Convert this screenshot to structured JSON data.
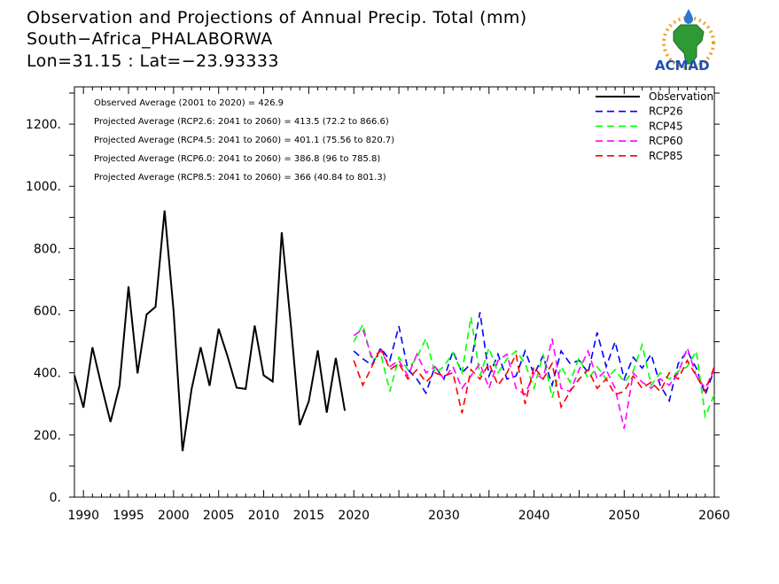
{
  "titles": [
    "Observation and Projections of Annual Precip. Total (mm)",
    "South−Africa_PHALABORWA",
    "Lon=31.15 : Lat=−23.93333"
  ],
  "logo": {
    "text": "ACMAD"
  },
  "notes": [
    "Observed Average (2001 to 2020) = 426.9",
    "Projected Average (RCP2.6: 2041 to 2060) = 413.5 (72.2 to 866.6)",
    "Projected Average (RCP4.5: 2041 to 2060) = 401.1 (75.56 to 820.7)",
    "Projected Average (RCP6.0: 2041 to 2060) = 386.8 (96 to 785.8)",
    "Projected Average (RCP8.5: 2041 to 2060) = 366 (40.84 to 801.3)"
  ],
  "colors": {
    "observation": "#000000",
    "rcp26": "#0000ff",
    "rcp45": "#00ff00",
    "rcp60": "#ff00ff",
    "rcp85": "#ff0000"
  },
  "chart_data": {
    "type": "line",
    "x_axis": {
      "min": 1989,
      "max": 2060,
      "tick_labels": [
        {
          "value": 1990,
          "label": "1990"
        },
        {
          "value": 1995,
          "label": "1995"
        },
        {
          "value": 2000,
          "label": "2000"
        },
        {
          "value": 2005,
          "label": "2005"
        },
        {
          "value": 2010,
          "label": "2010"
        },
        {
          "value": 2015,
          "label": "2015"
        },
        {
          "value": 2020,
          "label": "2020"
        },
        {
          "value": 2030,
          "label": "2030"
        },
        {
          "value": 2040,
          "label": "2040"
        },
        {
          "value": 2050,
          "label": "2050"
        },
        {
          "value": 2060,
          "label": "2060"
        }
      ]
    },
    "y_axis": {
      "min": 0,
      "max": 1320,
      "tick_labels": [
        {
          "value": 0,
          "label": "0."
        },
        {
          "value": 200,
          "label": "200."
        },
        {
          "value": 400,
          "label": "400."
        },
        {
          "value": 600,
          "label": "600."
        },
        {
          "value": 800,
          "label": "800."
        },
        {
          "value": 1000,
          "label": "1000."
        },
        {
          "value": 1200,
          "label": "1200."
        }
      ]
    },
    "legend_position": "top-right",
    "series": [
      {
        "key": "observation",
        "name": "Observation",
        "dashed": false,
        "x": [
          1989,
          1990,
          1991,
          1992,
          1993,
          1994,
          1995,
          1996,
          1997,
          1998,
          1999,
          2000,
          2001,
          2002,
          2003,
          2004,
          2005,
          2006,
          2007,
          2008,
          2009,
          2010,
          2011,
          2012,
          2013,
          2014,
          2015,
          2016,
          2017,
          2018,
          2019
        ],
        "y": [
          392,
          288,
          482,
          358,
          242,
          358,
          678,
          398,
          588,
          612,
          922,
          598,
          148,
          348,
          482,
          358,
          542,
          452,
          352,
          348,
          552,
          392,
          372,
          852,
          558,
          232,
          308,
          472,
          272,
          448,
          278
        ]
      },
      {
        "key": "rcp26",
        "name": "RCP26",
        "dashed": true,
        "x": [
          2020,
          2021,
          2022,
          2023,
          2024,
          2025,
          2026,
          2027,
          2028,
          2029,
          2030,
          2031,
          2032,
          2033,
          2034,
          2035,
          2036,
          2037,
          2038,
          2039,
          2040,
          2041,
          2042,
          2043,
          2044,
          2045,
          2046,
          2047,
          2048,
          2049,
          2050,
          2051,
          2052,
          2053,
          2054,
          2055,
          2056,
          2057,
          2058,
          2059,
          2060
        ],
        "y": [
          470,
          445,
          425,
          480,
          440,
          550,
          410,
          380,
          335,
          420,
          380,
          470,
          400,
          430,
          595,
          390,
          460,
          380,
          390,
          470,
          395,
          455,
          360,
          470,
          430,
          440,
          400,
          530,
          420,
          500,
          380,
          450,
          415,
          460,
          360,
          310,
          430,
          470,
          415,
          330,
          410
        ]
      },
      {
        "key": "rcp45",
        "name": "RCP45",
        "dashed": true,
        "x": [
          2020,
          2021,
          2022,
          2023,
          2024,
          2025,
          2026,
          2027,
          2028,
          2029,
          2030,
          2031,
          2032,
          2033,
          2034,
          2035,
          2036,
          2037,
          2038,
          2039,
          2040,
          2041,
          2042,
          2043,
          2044,
          2045,
          2046,
          2047,
          2048,
          2049,
          2050,
          2051,
          2052,
          2053,
          2054,
          2055,
          2056,
          2057,
          2058,
          2059,
          2060
        ],
        "y": [
          500,
          555,
          440,
          460,
          340,
          450,
          410,
          450,
          510,
          400,
          420,
          465,
          400,
          580,
          390,
          480,
          400,
          445,
          470,
          430,
          350,
          460,
          320,
          420,
          370,
          450,
          380,
          420,
          380,
          410,
          370,
          405,
          490,
          360,
          400,
          380,
          405,
          420,
          470,
          260,
          330
        ]
      },
      {
        "key": "rcp60",
        "name": "RCP60",
        "dashed": true,
        "x": [
          2020,
          2021,
          2022,
          2023,
          2024,
          2025,
          2026,
          2027,
          2028,
          2029,
          2030,
          2031,
          2032,
          2033,
          2034,
          2035,
          2036,
          2037,
          2038,
          2039,
          2040,
          2041,
          2042,
          2043,
          2044,
          2045,
          2046,
          2047,
          2048,
          2049,
          2050,
          2051,
          2052,
          2053,
          2054,
          2055,
          2056,
          2057,
          2058,
          2059,
          2060
        ],
        "y": [
          520,
          540,
          450,
          470,
          420,
          440,
          390,
          460,
          400,
          420,
          380,
          420,
          350,
          390,
          430,
          350,
          440,
          460,
          350,
          330,
          400,
          380,
          510,
          350,
          340,
          410,
          470,
          380,
          410,
          350,
          220,
          400,
          370,
          350,
          380,
          360,
          400,
          480,
          390,
          350,
          410
        ]
      },
      {
        "key": "rcp85",
        "name": "RCP85",
        "dashed": true,
        "x": [
          2020,
          2021,
          2022,
          2023,
          2024,
          2025,
          2026,
          2027,
          2028,
          2029,
          2030,
          2031,
          2032,
          2033,
          2034,
          2035,
          2036,
          2037,
          2038,
          2039,
          2040,
          2041,
          2042,
          2043,
          2044,
          2045,
          2046,
          2047,
          2048,
          2049,
          2050,
          2051,
          2052,
          2053,
          2054,
          2055,
          2056,
          2057,
          2058,
          2059,
          2060
        ],
        "y": [
          440,
          360,
          420,
          480,
          410,
          430,
          380,
          410,
          370,
          400,
          390,
          400,
          270,
          410,
          380,
          430,
          360,
          400,
          460,
          300,
          420,
          380,
          430,
          290,
          340,
          380,
          410,
          350,
          380,
          330,
          340,
          390,
          350,
          370,
          340,
          400,
          380,
          440,
          390,
          340,
          420
        ]
      }
    ]
  }
}
